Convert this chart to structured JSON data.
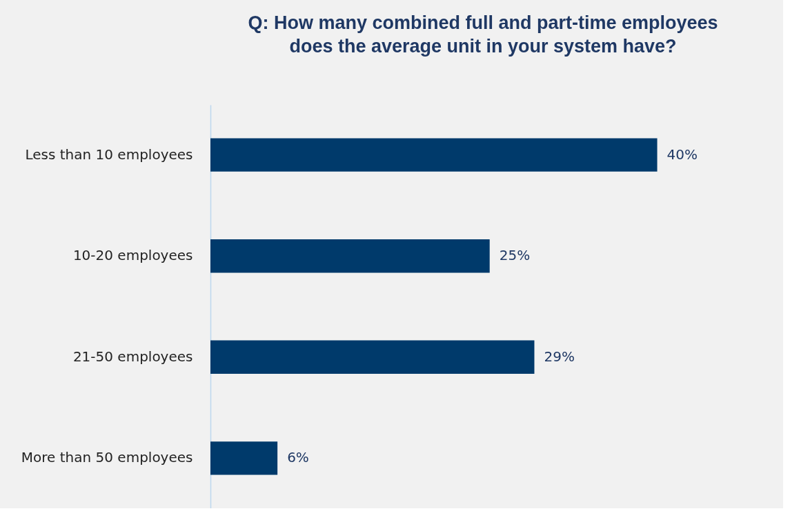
{
  "chart_data": {
    "type": "bar",
    "orientation": "horizontal",
    "title": [
      "Q: How many combined full and part-time employees",
      "does the average unit in your system have?"
    ],
    "categories": [
      "Less than 10 employees",
      "10-20 employees",
      "21-50 employees",
      "More than 50 employees"
    ],
    "values": [
      40,
      25,
      29,
      6
    ],
    "value_labels": [
      "40%",
      "25%",
      "29%",
      "6%"
    ],
    "color": "#003a6b"
  }
}
